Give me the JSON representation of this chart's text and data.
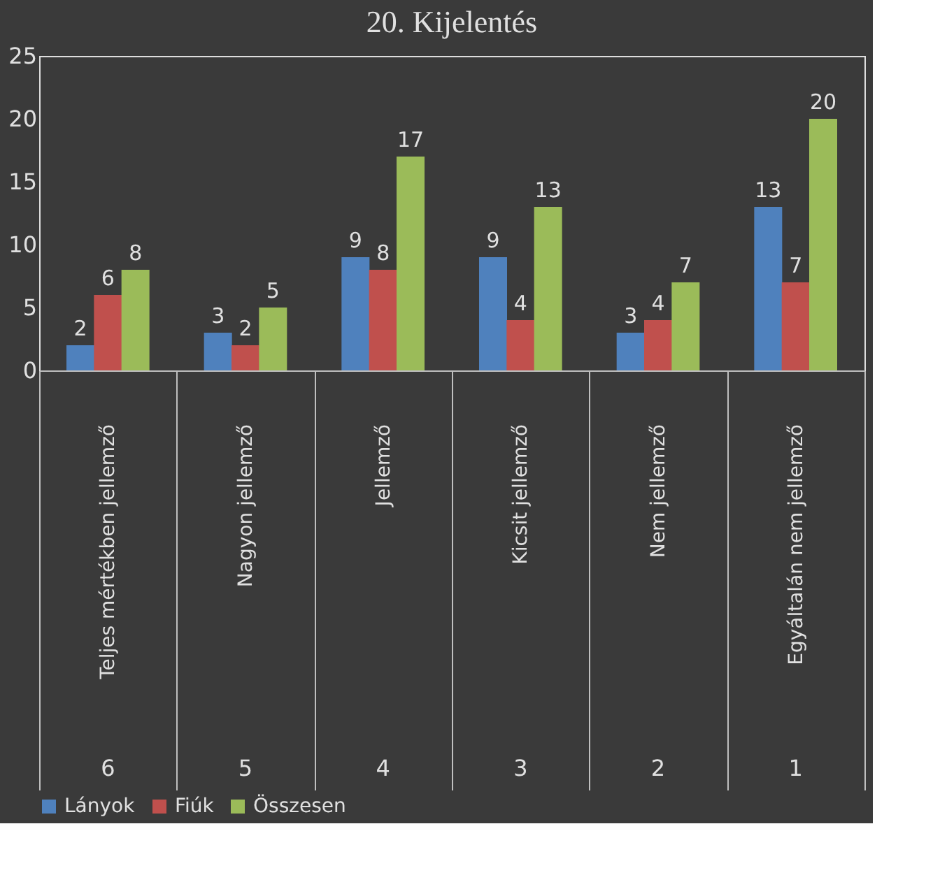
{
  "chart_data": {
    "type": "bar",
    "title": "20. Kijelentés",
    "categories": [
      "Teljes mértékben jellemző",
      "Nagyon jellemző",
      "Jellemző",
      "Kicsit jellemző",
      "Nem jellemző",
      "Egyáltalán nem jellemző"
    ],
    "series": [
      {
        "name": "Lányok",
        "color": "#4f81bd",
        "values": [
          2,
          3,
          9,
          9,
          3,
          13
        ]
      },
      {
        "name": "Fiúk",
        "color": "#c0504d",
        "values": [
          6,
          2,
          8,
          4,
          4,
          7
        ]
      },
      {
        "name": "Összesen",
        "color": "#9bbb59",
        "values": [
          8,
          5,
          17,
          13,
          7,
          20
        ]
      }
    ],
    "annotations": [
      "6",
      "5",
      "4",
      "3",
      "2",
      "1"
    ],
    "ylim": [
      0,
      25
    ],
    "yticks": [
      0,
      5,
      10,
      15,
      20,
      25
    ],
    "grid": false,
    "legend": "bottom",
    "data_labels": true
  }
}
